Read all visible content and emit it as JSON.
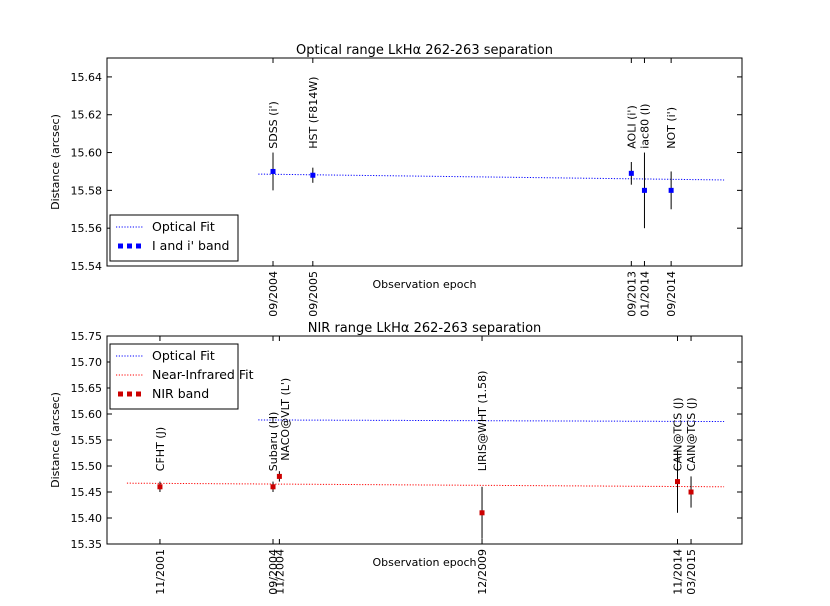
{
  "chart_data": [
    {
      "type": "scatter",
      "title": "Optical range LkHα 262-263 separation",
      "xlabel": "Observation epoch",
      "ylabel": "Distance (arcsec)",
      "ylim": [
        15.54,
        15.65
      ],
      "yticks": [
        "15.54",
        "15.56",
        "15.58",
        "15.60",
        "15.62",
        "15.64"
      ],
      "xticks": [
        {
          "label": "09/2004",
          "t": 2004.67
        },
        {
          "label": "09/2005",
          "t": 2005.67
        },
        {
          "label": "09/2013",
          "t": 2013.67
        },
        {
          "label": "01/2014",
          "t": 2014.0
        },
        {
          "label": "09/2014",
          "t": 2014.67
        }
      ],
      "legend": {
        "position": "lower-left",
        "entries": [
          {
            "label": "Optical Fit",
            "style": "fit",
            "color": "#0000ff"
          },
          {
            "label": "I and i' band",
            "style": "marker",
            "color": "#0000ff"
          }
        ]
      },
      "fits": [
        {
          "name": "Optical Fit",
          "color": "#0000ff",
          "t0": 2004.3,
          "t1": 2016.0,
          "y0": 15.5886,
          "y1": 15.5855
        }
      ],
      "series": [
        {
          "name": "I and i' band",
          "color": "#0000ff",
          "points": [
            {
              "t": 2004.67,
              "y": 15.59,
              "err": 0.01
            },
            {
              "t": 2005.67,
              "y": 15.588,
              "err": 0.004
            },
            {
              "t": 2013.67,
              "y": 15.589,
              "err": 0.006
            },
            {
              "t": 2014.0,
              "y": 15.58,
              "err": 0.02
            },
            {
              "t": 2014.67,
              "y": 15.58,
              "err": 0.01
            }
          ]
        }
      ],
      "annotations": [
        {
          "text": "SDSS (i')",
          "t": 2004.67,
          "y": 15.602
        },
        {
          "text": "HST (F814W)",
          "t": 2005.67,
          "y": 15.602
        },
        {
          "text": "AOLI (i')",
          "t": 2013.67,
          "y": 15.602
        },
        {
          "text": "iac80 (I)",
          "t": 2014.0,
          "y": 15.602
        },
        {
          "text": "NOT (i')",
          "t": 2014.67,
          "y": 15.602
        }
      ]
    },
    {
      "type": "scatter",
      "title": "NIR range LkHα 262-263 separation",
      "xlabel": "Observation epoch",
      "ylabel": "Distance (arcsec)",
      "ylim": [
        15.35,
        15.75
      ],
      "yticks": [
        "15.35",
        "15.40",
        "15.45",
        "15.50",
        "15.55",
        "15.60",
        "15.65",
        "15.70",
        "15.75"
      ],
      "xticks": [
        {
          "label": "11/2001",
          "t": 2001.83
        },
        {
          "label": "09/2004",
          "t": 2004.67
        },
        {
          "label": "11/2004",
          "t": 2004.83
        },
        {
          "label": "12/2009",
          "t": 2009.92
        },
        {
          "label": "11/2014",
          "t": 2014.83
        },
        {
          "label": "03/2015",
          "t": 2015.17
        }
      ],
      "legend": {
        "position": "upper-left",
        "entries": [
          {
            "label": "Optical Fit",
            "style": "fit",
            "color": "#0000ff"
          },
          {
            "label": "Near-Infrared Fit",
            "style": "fit",
            "color": "#ff0000"
          },
          {
            "label": "NIR band",
            "style": "marker",
            "color": "#cc0000"
          }
        ]
      },
      "fits": [
        {
          "name": "Optical Fit",
          "color": "#0000ff",
          "t0": 2004.3,
          "t1": 2016.0,
          "y0": 15.5886,
          "y1": 15.5855
        },
        {
          "name": "Near-Infrared Fit",
          "color": "#ff0000",
          "t0": 2001.0,
          "t1": 2016.0,
          "y0": 15.467,
          "y1": 15.46
        }
      ],
      "series": [
        {
          "name": "NIR band",
          "color": "#cc0000",
          "points": [
            {
              "t": 2001.83,
              "y": 15.46,
              "err": 0.01
            },
            {
              "t": 2004.67,
              "y": 15.46,
              "err": 0.01
            },
            {
              "t": 2004.83,
              "y": 15.48,
              "err": 0.01
            },
            {
              "t": 2009.92,
              "y": 15.41,
              "err": 0.05
            },
            {
              "t": 2014.83,
              "y": 15.47,
              "err": 0.06
            },
            {
              "t": 2015.17,
              "y": 15.45,
              "err": 0.03
            }
          ]
        }
      ],
      "annotations": [
        {
          "text": "CFHT (J)",
          "t": 2001.83,
          "y": 15.49
        },
        {
          "text": "Subaru (H)",
          "t": 2004.67,
          "y": 15.49
        },
        {
          "text": "NACO@VLT (L')",
          "t": 2004.97,
          "y": 15.51
        },
        {
          "text": "LIRIS@WHT (1.58)",
          "t": 2009.92,
          "y": 15.49
        },
        {
          "text": "CAIN@TCS (J)",
          "t": 2014.83,
          "y": 15.49
        },
        {
          "text": "CAIN@TCS (J)",
          "t": 2015.17,
          "y": 15.49
        }
      ]
    }
  ]
}
